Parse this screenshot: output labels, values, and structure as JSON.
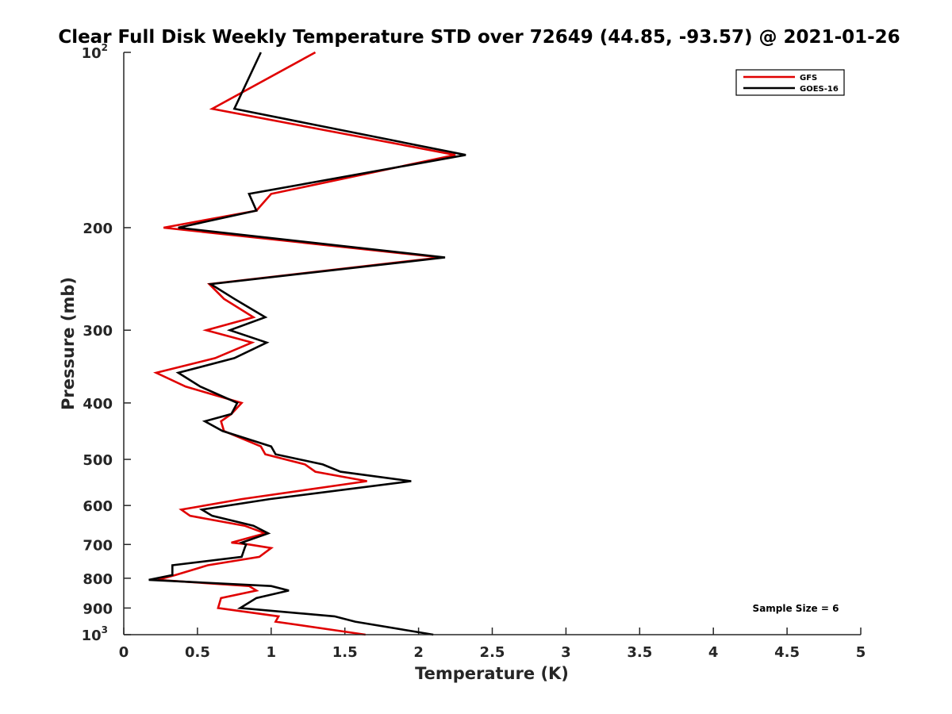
{
  "chart_data": {
    "type": "line",
    "title": "Clear Full Disk Weekly Temperature STD over 72649 (44.85, -93.57) @ 2021-01-26",
    "xlabel": "Temperature (K)",
    "ylabel": "Pressure (mb)",
    "xlim": [
      0,
      5
    ],
    "ylim": [
      100,
      1000
    ],
    "y_scale": "log",
    "y_reversed": true,
    "x_ticks": [
      0,
      0.5,
      1,
      1.5,
      2,
      2.5,
      3,
      3.5,
      4,
      4.5,
      5
    ],
    "x_tick_labels": [
      "0",
      "0.5",
      "1",
      "1.5",
      "2",
      "2.5",
      "3",
      "3.5",
      "4",
      "4.5",
      "5"
    ],
    "y_ticks": [
      100,
      200,
      300,
      400,
      500,
      600,
      700,
      800,
      900,
      1000
    ],
    "y_tick_labels": [
      {
        "base": "10",
        "exp": "2"
      },
      {
        "base": "200"
      },
      {
        "base": "300"
      },
      {
        "base": "400"
      },
      {
        "base": "500"
      },
      {
        "base": "600"
      },
      {
        "base": "700"
      },
      {
        "base": "800"
      },
      {
        "base": "900"
      },
      {
        "base": "10",
        "exp": "3"
      }
    ],
    "legend_position": "top-right",
    "annotation": "Sample Size = 6",
    "series": [
      {
        "name": "GFS",
        "color": "#e00000",
        "points": [
          [
            1.3,
            100
          ],
          [
            0.6,
            125
          ],
          [
            2.25,
            150
          ],
          [
            1.0,
            175
          ],
          [
            0.9,
            187
          ],
          [
            0.27,
            200
          ],
          [
            2.15,
            225
          ],
          [
            0.58,
            250
          ],
          [
            0.68,
            265
          ],
          [
            0.88,
            285
          ],
          [
            0.56,
            300
          ],
          [
            0.87,
            315
          ],
          [
            0.62,
            335
          ],
          [
            0.22,
            355
          ],
          [
            0.42,
            375
          ],
          [
            0.8,
            400
          ],
          [
            0.73,
            418
          ],
          [
            0.66,
            430
          ],
          [
            0.68,
            447
          ],
          [
            0.93,
            475
          ],
          [
            0.96,
            490
          ],
          [
            1.23,
            510
          ],
          [
            1.3,
            525
          ],
          [
            1.65,
            545
          ],
          [
            0.8,
            585
          ],
          [
            0.39,
            610
          ],
          [
            0.45,
            625
          ],
          [
            0.82,
            650
          ],
          [
            0.96,
            670
          ],
          [
            0.73,
            695
          ],
          [
            0.85,
            700
          ],
          [
            1.0,
            710
          ],
          [
            0.92,
            735
          ],
          [
            0.57,
            760
          ],
          [
            0.35,
            790
          ],
          [
            0.23,
            805
          ],
          [
            0.85,
            825
          ],
          [
            0.9,
            840
          ],
          [
            0.66,
            865
          ],
          [
            0.64,
            900
          ],
          [
            1.05,
            930
          ],
          [
            1.03,
            950
          ],
          [
            1.64,
            1000
          ]
        ]
      },
      {
        "name": "GOES-16",
        "color": "#000000",
        "points": [
          [
            0.93,
            100
          ],
          [
            0.75,
            125
          ],
          [
            2.32,
            150
          ],
          [
            0.85,
            175
          ],
          [
            0.9,
            187
          ],
          [
            0.37,
            200
          ],
          [
            2.18,
            225
          ],
          [
            0.59,
            250
          ],
          [
            0.75,
            265
          ],
          [
            0.96,
            285
          ],
          [
            0.72,
            300
          ],
          [
            0.97,
            315
          ],
          [
            0.75,
            335
          ],
          [
            0.37,
            355
          ],
          [
            0.52,
            375
          ],
          [
            0.77,
            400
          ],
          [
            0.73,
            418
          ],
          [
            0.55,
            430
          ],
          [
            0.67,
            447
          ],
          [
            1.0,
            475
          ],
          [
            1.03,
            490
          ],
          [
            1.35,
            510
          ],
          [
            1.47,
            525
          ],
          [
            1.95,
            545
          ],
          [
            0.99,
            585
          ],
          [
            0.53,
            610
          ],
          [
            0.6,
            625
          ],
          [
            0.88,
            650
          ],
          [
            0.98,
            670
          ],
          [
            0.8,
            695
          ],
          [
            0.83,
            700
          ],
          [
            0.82,
            710
          ],
          [
            0.8,
            735
          ],
          [
            0.33,
            760
          ],
          [
            0.33,
            790
          ],
          [
            0.17,
            805
          ],
          [
            1.0,
            825
          ],
          [
            1.12,
            840
          ],
          [
            0.9,
            865
          ],
          [
            0.79,
            900
          ],
          [
            1.43,
            930
          ],
          [
            1.57,
            950
          ],
          [
            2.1,
            1000
          ]
        ]
      }
    ]
  }
}
